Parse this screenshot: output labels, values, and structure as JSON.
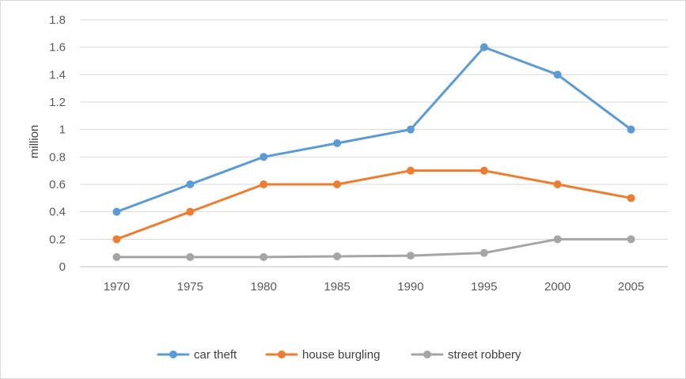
{
  "chart_data": {
    "type": "line",
    "title": "",
    "xlabel": "",
    "ylabel": "million",
    "x": [
      "1970",
      "1975",
      "1980",
      "1985",
      "1990",
      "1995",
      "2000",
      "2005"
    ],
    "ylim": [
      0,
      1.8
    ],
    "y_ticks": [
      "0",
      "0.2",
      "0.4",
      "0.6",
      "0.8",
      "1",
      "1.2",
      "1.4",
      "1.6",
      "1.8"
    ],
    "grid": true,
    "legend_position": "bottom",
    "series": [
      {
        "name": "car theft",
        "color": "#5b9bd5",
        "values": [
          0.4,
          0.6,
          0.8,
          0.9,
          1.0,
          1.6,
          1.4,
          1.0
        ]
      },
      {
        "name": "house burgling",
        "color": "#ed7d31",
        "values": [
          0.2,
          0.4,
          0.6,
          0.6,
          0.7,
          0.7,
          0.6,
          0.5
        ]
      },
      {
        "name": "street robbery",
        "color": "#a5a5a5",
        "values": [
          0.07,
          0.07,
          0.07,
          0.075,
          0.08,
          0.1,
          0.2,
          0.2
        ]
      }
    ]
  }
}
